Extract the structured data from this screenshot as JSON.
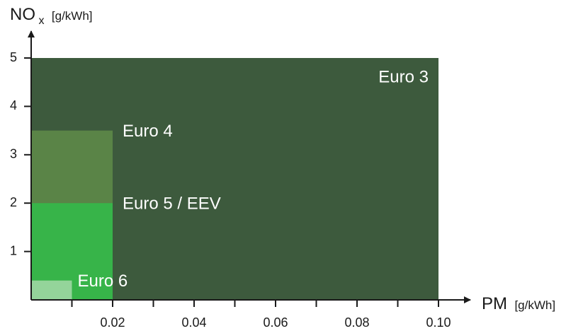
{
  "chart_data": {
    "type": "area",
    "title": "",
    "xlabel": {
      "main": "PM",
      "unit": "[g/kWh]"
    },
    "ylabel": {
      "main": "NO",
      "sub": "x",
      "unit": "[g/kWh]"
    },
    "xlim": [
      0,
      0.1
    ],
    "ylim": [
      0,
      5
    ],
    "x_ticks": [
      0.01,
      0.02,
      0.03,
      0.04,
      0.05,
      0.06,
      0.07,
      0.08,
      0.09,
      0.1
    ],
    "x_tick_labels": [
      {
        "value": 0.02,
        "label": "0.02"
      },
      {
        "value": 0.04,
        "label": "0.04"
      },
      {
        "value": 0.06,
        "label": "0.06"
      },
      {
        "value": 0.08,
        "label": "0.08"
      },
      {
        "value": 0.1,
        "label": "0.10"
      }
    ],
    "y_ticks": [
      {
        "value": 1,
        "label": "1"
      },
      {
        "value": 2,
        "label": "2"
      },
      {
        "value": 3,
        "label": "3"
      },
      {
        "value": 4,
        "label": "4"
      },
      {
        "value": 5,
        "label": "5"
      }
    ],
    "series": [
      {
        "name": "Euro 3",
        "pm_limit": 0.1,
        "nox_limit": 5.0,
        "color": "#3d5a3d"
      },
      {
        "name": "Euro 4",
        "pm_limit": 0.02,
        "nox_limit": 3.5,
        "color": "#5a8447"
      },
      {
        "name": "Euro 5 / EEV",
        "pm_limit": 0.02,
        "nox_limit": 2.0,
        "color": "#37b449"
      },
      {
        "name": "Euro 6",
        "pm_limit": 0.01,
        "nox_limit": 0.4,
        "color": "#94d49a"
      }
    ],
    "grid": false,
    "legend": "none"
  }
}
